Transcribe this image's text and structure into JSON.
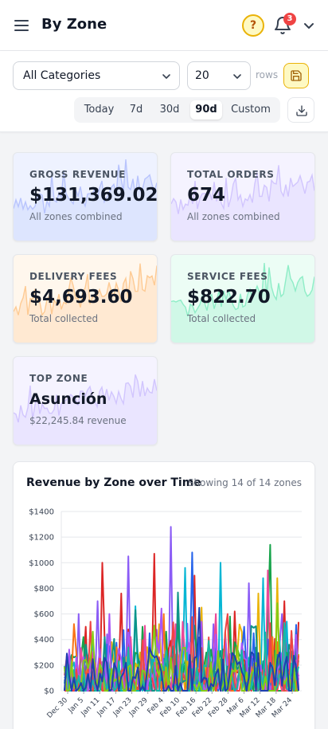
{
  "header": {
    "title": "By Zone",
    "notification_count": "3",
    "help_icon": "?"
  },
  "filters": {
    "category": "All Categories",
    "rows": "20",
    "rows_label": "rows",
    "ranges": [
      {
        "label": "Today",
        "active": false
      },
      {
        "label": "7d",
        "active": false
      },
      {
        "label": "30d",
        "active": false
      },
      {
        "label": "90d",
        "active": true
      },
      {
        "label": "Custom",
        "active": false
      }
    ]
  },
  "cards": [
    {
      "label": "GROSS REVENUE",
      "value": "$131,369.02",
      "sub": "All zones combined",
      "bg": "#eef2ff",
      "spark": "#a5b4fc"
    },
    {
      "label": "TOTAL ORDERS",
      "value": "674",
      "sub": "All zones combined",
      "bg": "#f5f3ff",
      "spark": "#c4b5fd"
    },
    {
      "label": "DELIVERY FEES",
      "value": "$4,693.60",
      "sub": "Total collected",
      "bg": "#fff7ed",
      "spark": "#fdba74"
    },
    {
      "label": "SERVICE FEES",
      "value": "$822.70",
      "sub": "Total collected",
      "bg": "#ecfdf5",
      "spark": "#6ee7b7"
    },
    {
      "label": "TOP ZONE",
      "value": "Asunción",
      "sub": "$22,245.84 revenue",
      "bg": "#f5f3ff",
      "spark": "#c4b5fd"
    }
  ],
  "chart": {
    "title": "Revenue by Zone over Time",
    "subtitle": "Showing 14 of 14 zones"
  },
  "chart_data": {
    "type": "line",
    "title": "Revenue by Zone over Time",
    "ylim": [
      0,
      1400
    ],
    "y_ticks": [
      "$0",
      "$200",
      "$400",
      "$600",
      "$800",
      "$1000",
      "$1200",
      "$1400"
    ],
    "x_ticks": [
      "Dec 30",
      "Jan 5",
      "Jan 11",
      "Jan 17",
      "Jan 23",
      "Jan 29",
      "Feb 4",
      "Feb 10",
      "Feb 16",
      "Feb 22",
      "Feb 28",
      "Mar 6",
      "Mar 12",
      "Mar 18",
      "Mar 24"
    ],
    "series_colors": [
      "#8b5cf6",
      "#dc2626",
      "#06b6d4",
      "#eab308",
      "#16a34a",
      "#2563eb",
      "#f97316",
      "#ec4899",
      "#0d9488",
      "#a855f7",
      "#ef4444",
      "#14b8a6",
      "#84cc16",
      "#1e40af"
    ],
    "series": [
      {
        "peaks": [
          [
            6,
            600
          ],
          [
            14,
            700
          ],
          [
            27,
            1050
          ],
          [
            45,
            1280
          ],
          [
            63,
            520
          ],
          [
            78,
            840
          ],
          [
            92,
            600
          ]
        ]
      },
      {
        "peaks": [
          [
            9,
            500
          ],
          [
            16,
            1000
          ],
          [
            24,
            760
          ],
          [
            38,
            1070
          ],
          [
            55,
            900
          ],
          [
            72,
            620
          ],
          [
            93,
            700
          ]
        ]
      },
      {
        "peaks": [
          [
            12,
            420
          ],
          [
            30,
            660
          ],
          [
            51,
            960
          ],
          [
            66,
            1000
          ],
          [
            84,
            880
          ],
          [
            96,
            460
          ]
        ]
      },
      {
        "peaks": [
          [
            20,
            380
          ],
          [
            40,
            520
          ],
          [
            58,
            650
          ],
          [
            82,
            760
          ],
          [
            90,
            880
          ]
        ]
      },
      {
        "peaks": [
          [
            8,
            420
          ],
          [
            33,
            500
          ],
          [
            48,
            560
          ],
          [
            70,
            580
          ],
          [
            87,
            1140
          ]
        ]
      },
      {
        "peaks": [
          [
            18,
            360
          ],
          [
            36,
            450
          ],
          [
            54,
            1080
          ],
          [
            76,
            500
          ],
          [
            95,
            300
          ]
        ]
      },
      {
        "peaks": [
          [
            5,
            300
          ],
          [
            22,
            340
          ],
          [
            42,
            600
          ],
          [
            68,
            460
          ],
          [
            88,
            420
          ]
        ]
      },
      {
        "peaks": [
          [
            11,
            260
          ],
          [
            28,
            420
          ],
          [
            47,
            520
          ],
          [
            64,
            600
          ],
          [
            86,
            940
          ]
        ]
      }
    ]
  }
}
